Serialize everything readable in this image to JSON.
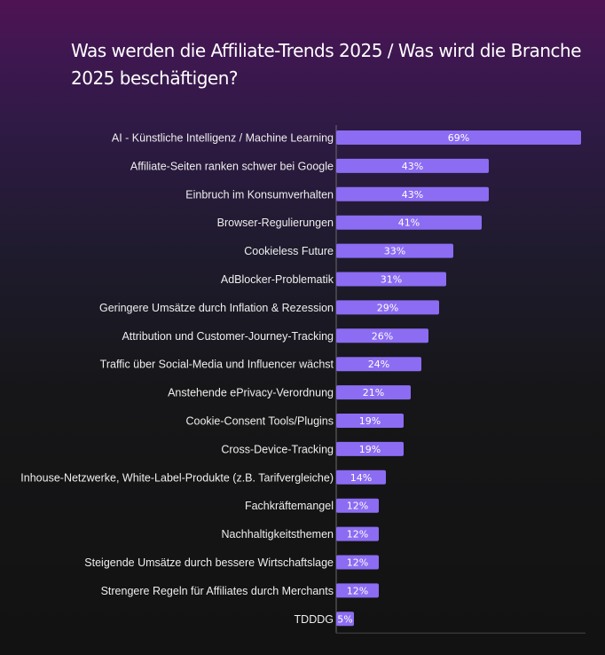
{
  "chart_data": {
    "type": "bar",
    "orientation": "horizontal",
    "title": "Was werden die Affiliate-Trends 2025 / Was wird die Branche 2025 beschäftigen?",
    "categories": [
      "AI - Künstliche Intelligenz / Machine Learning",
      "Affiliate-Seiten ranken schwer bei Google",
      "Einbruch im Konsumverhalten",
      "Browser-Regulierungen",
      "Cookieless Future",
      "AdBlocker-Problematik",
      "Geringere Umsätze durch Inflation & Rezession",
      "Attribution und Customer-Journey-Tracking",
      "Traffic über Social-Media und Influencer wächst",
      "Anstehende ePrivacy-Verordnung",
      "Cookie-Consent Tools/Plugins",
      "Cross-Device-Tracking",
      "Inhouse-Netzwerke, White-Label-Produkte (z.B. Tarifvergleiche)",
      "Fachkräftemangel",
      "Nachhaltigkeitsthemen",
      "Steigende Umsätze durch bessere Wirtschaftslage",
      "Strengere Regeln für Affiliates durch Merchants",
      "TDDDG"
    ],
    "values": [
      69,
      43,
      43,
      41,
      33,
      31,
      29,
      26,
      24,
      21,
      19,
      19,
      14,
      12,
      12,
      12,
      12,
      5
    ],
    "value_labels": [
      "69%",
      "43%",
      "43%",
      "41%",
      "33%",
      "31%",
      "29%",
      "26%",
      "24%",
      "21%",
      "19%",
      "19%",
      "14%",
      "12%",
      "12%",
      "12%",
      "12%",
      "5%"
    ],
    "unit": "%",
    "xlim": [
      0,
      72
    ],
    "grid": false,
    "legend": "none",
    "colors": {
      "bar": "#8b6cf2",
      "label_text": "#eeeeee",
      "value_text": "#ffffff",
      "baseline": "#6a6a6a"
    }
  }
}
